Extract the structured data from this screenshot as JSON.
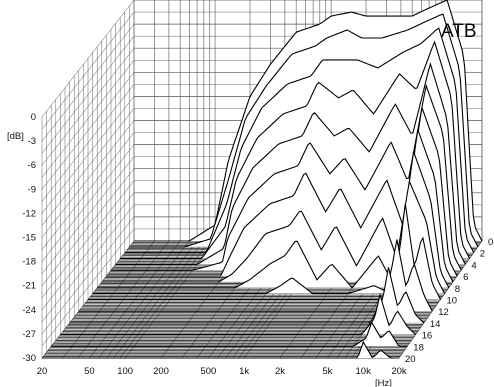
{
  "chart_data": {
    "type": "area",
    "title": "ATB",
    "xlabel": "[Hz]",
    "ylabel": "[dB]",
    "xscale": "log",
    "xlim": [
      20,
      20000
    ],
    "ylim": [
      -30,
      0
    ],
    "x_ticks": [
      {
        "value": 20,
        "label": "20"
      },
      {
        "value": 50,
        "label": "50"
      },
      {
        "value": 100,
        "label": "100"
      },
      {
        "value": 200,
        "label": "200"
      },
      {
        "value": 500,
        "label": "500"
      },
      {
        "value": 1000,
        "label": "1k"
      },
      {
        "value": 2000,
        "label": "2k"
      },
      {
        "value": 5000,
        "label": "5k"
      },
      {
        "value": 10000,
        "label": "10k"
      },
      {
        "value": 20000,
        "label": "20k"
      }
    ],
    "y_ticks": [
      {
        "value": 0,
        "label": "0"
      },
      {
        "value": -3,
        "label": "-3"
      },
      {
        "value": -6,
        "label": "-6"
      },
      {
        "value": -9,
        "label": "-9"
      },
      {
        "value": -12,
        "label": "-12"
      },
      {
        "value": -15,
        "label": "-15"
      },
      {
        "value": -18,
        "label": "-18"
      },
      {
        "value": -21,
        "label": "-21"
      },
      {
        "value": -24,
        "label": "-24"
      },
      {
        "value": -27,
        "label": "-27"
      },
      {
        "value": -30,
        "label": "-30"
      }
    ],
    "z_ticks": [
      {
        "value": 0,
        "label": "0"
      },
      {
        "value": 2,
        "label": "2"
      },
      {
        "value": 4,
        "label": "4"
      },
      {
        "value": 6,
        "label": "6"
      },
      {
        "value": 8,
        "label": "8"
      },
      {
        "value": 10,
        "label": "10"
      },
      {
        "value": 12,
        "label": "12"
      },
      {
        "value": 14,
        "label": "14"
      },
      {
        "value": 16,
        "label": "16"
      },
      {
        "value": 18,
        "label": "18"
      },
      {
        "value": 20,
        "label": "20"
      }
    ],
    "zlim": [
      0,
      20
    ],
    "grid": true,
    "series": [
      {
        "z": 0,
        "x": [
          30,
          60,
          100,
          130,
          200,
          300,
          500,
          800,
          1000,
          1500,
          2000,
          3000,
          5000,
          7000,
          10000,
          14000,
          17000,
          20000
        ],
        "y": [
          -30,
          -30,
          -28,
          -20,
          -12,
          -8,
          -4,
          -3,
          -2,
          -1.5,
          -2,
          -2,
          -2,
          -1,
          0,
          -7,
          -28,
          -30
        ]
      },
      {
        "z": 1,
        "x": [
          30,
          60,
          100,
          140,
          200,
          300,
          500,
          800,
          1000,
          1500,
          2000,
          3000,
          5000,
          7000,
          10000,
          14000,
          17000,
          20000
        ],
        "y": [
          -30,
          -30,
          -29,
          -22,
          -14,
          -10,
          -6,
          -5,
          -4,
          -3,
          -4,
          -4,
          -3,
          -2,
          -1,
          -8,
          -28,
          -30
        ]
      },
      {
        "z": 2,
        "x": [
          30,
          60,
          100,
          150,
          200,
          300,
          500,
          800,
          1000,
          1500,
          2000,
          3000,
          5000,
          7000,
          10000,
          14000,
          17000,
          20000
        ],
        "y": [
          -30,
          -30,
          -30,
          -24,
          -17,
          -12,
          -9,
          -8,
          -6,
          -6,
          -6,
          -7,
          -5,
          -4,
          -2,
          -9,
          -28,
          -30
        ]
      },
      {
        "z": 3,
        "x": [
          30,
          60,
          100,
          160,
          200,
          300,
          500,
          800,
          1000,
          1500,
          2000,
          3000,
          5000,
          7000,
          10000,
          14000,
          17000,
          20000
        ],
        "y": [
          -30,
          -30,
          -30,
          -26,
          -20,
          -15,
          -12,
          -11,
          -8,
          -10,
          -9,
          -12,
          -7,
          -9,
          -3,
          -10,
          -28,
          -30
        ]
      },
      {
        "z": 4,
        "x": [
          30,
          60,
          100,
          170,
          200,
          300,
          500,
          800,
          1000,
          1500,
          2000,
          3000,
          5000,
          7000,
          10000,
          14000,
          17000,
          20000
        ],
        "y": [
          -30,
          -30,
          -30,
          -28,
          -23,
          -18,
          -15,
          -14,
          -11,
          -14,
          -13,
          -16,
          -10,
          -14,
          -5,
          -12,
          -28,
          -30
        ]
      },
      {
        "z": 5,
        "x": [
          30,
          60,
          100,
          180,
          200,
          300,
          500,
          800,
          1000,
          1500,
          2000,
          3000,
          5000,
          7000,
          10000,
          14000,
          17000,
          20000
        ],
        "y": [
          -30,
          -30,
          -30,
          -29,
          -26,
          -21,
          -18,
          -17,
          -14,
          -18,
          -16,
          -20,
          -14,
          -19,
          -7,
          -13,
          -28,
          -30
        ]
      },
      {
        "z": 6,
        "x": [
          30,
          60,
          100,
          190,
          220,
          300,
          500,
          800,
          1000,
          1500,
          2000,
          3000,
          5000,
          7000,
          10000,
          14000,
          17000,
          20000
        ],
        "y": [
          -30,
          -30,
          -30,
          -30,
          -28,
          -24,
          -21,
          -20,
          -17,
          -22,
          -19,
          -24,
          -18,
          -24,
          -9,
          -15,
          -28,
          -30
        ]
      },
      {
        "z": 7,
        "x": [
          30,
          60,
          100,
          200,
          260,
          350,
          500,
          800,
          1000,
          1500,
          2000,
          3000,
          5000,
          7000,
          10000,
          14000,
          17000,
          20000
        ],
        "y": [
          -30,
          -30,
          -30,
          -30,
          -29,
          -27,
          -24,
          -23,
          -21,
          -26,
          -23,
          -28,
          -22,
          -28,
          -11,
          -17,
          -28,
          -30
        ]
      },
      {
        "z": 8,
        "x": [
          30,
          60,
          100,
          200,
          300,
          400,
          600,
          800,
          1000,
          1500,
          2000,
          3000,
          5000,
          7000,
          10000,
          14000,
          17000,
          20000
        ],
        "y": [
          -30,
          -30,
          -30,
          -30,
          -30,
          -29,
          -27,
          -26,
          -24,
          -29,
          -27,
          -30,
          -26,
          -30,
          -13,
          -19,
          -28,
          -30
        ]
      },
      {
        "z": 9,
        "x": [
          30,
          60,
          100,
          200,
          400,
          600,
          800,
          1000,
          1500,
          2000,
          3000,
          5000,
          7000,
          10000,
          14000,
          17000,
          20000
        ],
        "y": [
          -30,
          -30,
          -30,
          -30,
          -30,
          -30,
          -29,
          -28,
          -30,
          -30,
          -30,
          -29,
          -30,
          -16,
          -21,
          -28,
          -30
        ]
      },
      {
        "z": 10,
        "x": [
          30,
          60,
          100,
          200,
          500,
          1000,
          2000,
          3000,
          5000,
          7000,
          9000,
          10000,
          12000,
          14000,
          17000,
          20000
        ],
        "y": [
          -30,
          -30,
          -30,
          -30,
          -30,
          -30,
          -30,
          -30,
          -30,
          -30,
          -24,
          -18,
          -26,
          -22,
          -28,
          -30
        ]
      },
      {
        "z": 12,
        "x": [
          30,
          60,
          100,
          200,
          500,
          1000,
          2000,
          5000,
          7000,
          9000,
          10000,
          12000,
          14000,
          17000,
          20000
        ],
        "y": [
          -30,
          -30,
          -30,
          -30,
          -30,
          -30,
          -30,
          -30,
          -30,
          -25,
          -21,
          -27,
          -24,
          -28,
          -30
        ]
      },
      {
        "z": 14,
        "x": [
          30,
          60,
          100,
          200,
          500,
          1000,
          2000,
          5000,
          7000,
          9000,
          10000,
          12000,
          14000,
          17000,
          20000
        ],
        "y": [
          -30,
          -30,
          -30,
          -30,
          -30,
          -30,
          -30,
          -30,
          -30,
          -27,
          -23,
          -28,
          -26,
          -29,
          -30
        ]
      },
      {
        "z": 16,
        "x": [
          30,
          60,
          100,
          200,
          500,
          1000,
          2000,
          5000,
          7000,
          9000,
          10000,
          12000,
          14000,
          17000,
          20000
        ],
        "y": [
          -30,
          -30,
          -30,
          -30,
          -30,
          -30,
          -30,
          -30,
          -30,
          -28,
          -25,
          -29,
          -27,
          -29,
          -30
        ]
      },
      {
        "z": 18,
        "x": [
          30,
          60,
          100,
          200,
          500,
          1000,
          2000,
          5000,
          7000,
          9000,
          10000,
          12000,
          14000,
          17000,
          20000
        ],
        "y": [
          -30,
          -30,
          -30,
          -30,
          -30,
          -30,
          -30,
          -30,
          -30,
          -29,
          -27,
          -29,
          -28,
          -30,
          -30
        ]
      },
      {
        "z": 20,
        "x": [
          30,
          60,
          100,
          200,
          500,
          1000,
          2000,
          5000,
          7000,
          9000,
          10000,
          12000,
          14000,
          17000,
          20000
        ],
        "y": [
          -30,
          -30,
          -30,
          -30,
          -30,
          -30,
          -30,
          -30,
          -30,
          -30,
          -28,
          -30,
          -29,
          -30,
          -30
        ]
      }
    ]
  }
}
